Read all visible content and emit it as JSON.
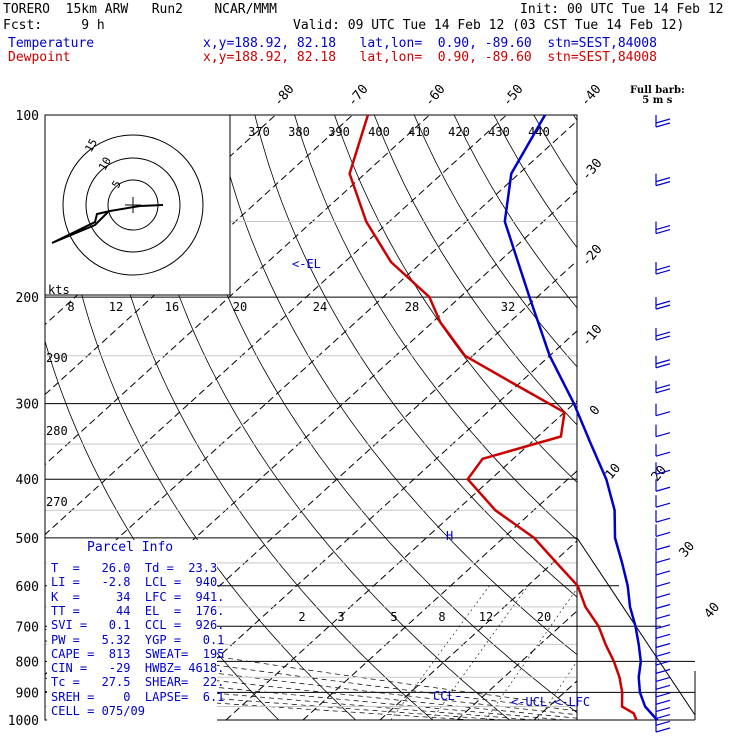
{
  "header": {
    "line1_left": "TORERO  15km ARW   Run2    NCAR/MMM",
    "line1_right": "Init: 00 UTC Tue 14 Feb 12",
    "line2_left": "Fcst:     9 h",
    "line2_right": "Valid: 09 UTC Tue 14 Feb 12 (03 CST Tue 14 Feb 12)",
    "temp_label": "Temperature",
    "temp_info": "x,y=188.92, 82.18   lat,lon=  0.90, -89.60  stn=SEST,84008",
    "dew_label": "Dewpoint",
    "dew_info": "x,y=188.92, 82.18   lat,lon=  0.90, -89.60  stn=SEST,84008",
    "full_barb_line1": "Full barb:",
    "full_barb_line2": "5 m s"
  },
  "colors": {
    "temperature": "#0000cc",
    "dewpoint": "#cc0000",
    "grid": "#000000",
    "label_text": "#0000cc"
  },
  "chart_data": {
    "type": "line",
    "title": "",
    "y_axis": "pressure (hPa), log scale",
    "ylim": [
      1000,
      100
    ],
    "pressure_ticks": [
      100,
      200,
      300,
      400,
      500,
      600,
      700,
      800,
      900,
      1000
    ],
    "temperature_ticks": [
      -80,
      -70,
      -60,
      -50,
      -40,
      -30,
      -20,
      -10,
      0,
      10,
      20,
      30,
      40
    ],
    "theta_labels_top": [
      "370",
      "380",
      "390",
      "400",
      "410",
      "420",
      "430",
      "440"
    ],
    "theta_labels_left": [
      "290",
      "280",
      "270"
    ],
    "mixing_ratio_labels_mid": [
      "8",
      "12",
      "16",
      "20",
      "24",
      "28",
      "32"
    ],
    "mixing_ratio_labels_low": [
      "2",
      "3",
      "5",
      "8",
      "12",
      "20"
    ],
    "series": [
      {
        "name": "Temperature",
        "points": [
          {
            "p": 1000,
            "t": 26.0
          },
          {
            "p": 950,
            "t": 22.5
          },
          {
            "p": 900,
            "t": 19.8
          },
          {
            "p": 850,
            "t": 17.5
          },
          {
            "p": 800,
            "t": 15.5
          },
          {
            "p": 750,
            "t": 12.8
          },
          {
            "p": 700,
            "t": 9.8
          },
          {
            "p": 650,
            "t": 6.3
          },
          {
            "p": 600,
            "t": 3.0
          },
          {
            "p": 550,
            "t": -1.0
          },
          {
            "p": 500,
            "t": -5.5
          },
          {
            "p": 450,
            "t": -9.5
          },
          {
            "p": 400,
            "t": -15.0
          },
          {
            "p": 350,
            "t": -22.0
          },
          {
            "p": 300,
            "t": -30.0
          },
          {
            "p": 250,
            "t": -40.0
          },
          {
            "p": 200,
            "t": -51.0
          },
          {
            "p": 175,
            "t": -57.5
          },
          {
            "p": 150,
            "t": -65.0
          },
          {
            "p": 125,
            "t": -71.0
          },
          {
            "p": 100,
            "t": -75.0
          }
        ]
      },
      {
        "name": "Dewpoint",
        "points": [
          {
            "p": 1000,
            "t": 23.3
          },
          {
            "p": 975,
            "t": 22.0
          },
          {
            "p": 950,
            "t": 19.5
          },
          {
            "p": 900,
            "t": 17.5
          },
          {
            "p": 850,
            "t": 15.0
          },
          {
            "p": 800,
            "t": 12.0
          },
          {
            "p": 750,
            "t": 8.5
          },
          {
            "p": 700,
            "t": 5.0
          },
          {
            "p": 650,
            "t": 0.5
          },
          {
            "p": 600,
            "t": -3.5
          },
          {
            "p": 550,
            "t": -9.5
          },
          {
            "p": 500,
            "t": -16.0
          },
          {
            "p": 450,
            "t": -25.0
          },
          {
            "p": 400,
            "t": -33.0
          },
          {
            "p": 370,
            "t": -34.0
          },
          {
            "p": 340,
            "t": -27.0
          },
          {
            "p": 310,
            "t": -30.0
          },
          {
            "p": 280,
            "t": -40.0
          },
          {
            "p": 250,
            "t": -51.0
          },
          {
            "p": 220,
            "t": -59.0
          },
          {
            "p": 200,
            "t": -64.0
          },
          {
            "p": 175,
            "t": -74.0
          },
          {
            "p": 150,
            "t": -83.0
          },
          {
            "p": 125,
            "t": -92.0
          },
          {
            "p": 100,
            "t": -98.0
          }
        ]
      }
    ],
    "annotations": [
      {
        "text": "<-EL",
        "p": 176
      },
      {
        "text": "H",
        "p": 500
      },
      {
        "text": "CCL-",
        "p": 926
      },
      {
        "text": "<-UCL",
        "p": 940
      },
      {
        "text": "<-LFC",
        "p": 941
      }
    ],
    "hodograph": {
      "units_label": "kts",
      "ring_labels": [
        "5",
        "10",
        "15"
      ]
    },
    "wind_barbs_levels": [
      100,
      125,
      150,
      175,
      200,
      225,
      250,
      275,
      300,
      325,
      350,
      375,
      400,
      425,
      450,
      475,
      500,
      525,
      550,
      575,
      600,
      625,
      650,
      675,
      700,
      725,
      750,
      775,
      800,
      825,
      850,
      875,
      900,
      925,
      950,
      975,
      1000
    ]
  },
  "parcel_info": {
    "title": "Parcel Info",
    "rows": [
      "T  =   26.0  Td =  23.3",
      "LI =   -2.8  LCL =  940.",
      "K  =     34  LFC =  941.",
      "TT =     44  EL  =  176.",
      "SVI =   0.1  CCL =  926.",
      "PW =   5.32  YGP =   0.1",
      "CAPE =  813  SWEAT=  195",
      "CIN =   -29  HWBZ= 4618.",
      "Tc =   27.5  SHEAR=  22.",
      "SREH =    0  LAPSE=  6.1",
      "CELL = 075/09"
    ]
  }
}
